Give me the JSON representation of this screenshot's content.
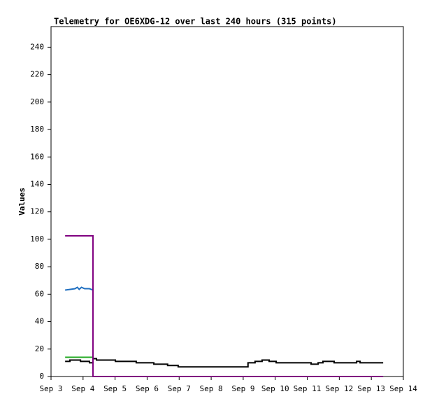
{
  "chart_data": {
    "type": "line",
    "title": "Telemetry for OE6XDG-12 over last 240 hours (315 points)",
    "y_label": "Values",
    "xlim": [
      3,
      14
    ],
    "xticks": [
      {
        "value": 3,
        "label": "Sep 3"
      },
      {
        "value": 4,
        "label": "Sep 4"
      },
      {
        "value": 5,
        "label": "Sep 5"
      },
      {
        "value": 6,
        "label": "Sep 6"
      },
      {
        "value": 7,
        "label": "Sep 7"
      },
      {
        "value": 8,
        "label": "Sep 8"
      },
      {
        "value": 9,
        "label": "Sep 9"
      },
      {
        "value": 10,
        "label": "Sep 10"
      },
      {
        "value": 11,
        "label": "Sep 11"
      },
      {
        "value": 12,
        "label": "Sep 12"
      },
      {
        "value": 13,
        "label": "Sep 13"
      },
      {
        "value": 14,
        "label": "Sep 14"
      }
    ],
    "ylim": [
      0,
      255
    ],
    "yticks": [
      0,
      20,
      40,
      60,
      80,
      100,
      120,
      140,
      160,
      180,
      200,
      220,
      240
    ],
    "grid": false,
    "series": [
      {
        "color": "#000000",
        "x": [
          3.44,
          3.59,
          3.59,
          3.92,
          3.92,
          4.2,
          4.2,
          4.31,
          4.31,
          4.42,
          4.42,
          5.01,
          5.01,
          5.66,
          5.66,
          6.21,
          6.21,
          6.64,
          6.64,
          6.97,
          6.97,
          9.15,
          9.15,
          9.37,
          9.37,
          9.59,
          9.59,
          9.81,
          9.81,
          10.03,
          10.03,
          11.12,
          11.12,
          11.34,
          11.34,
          11.49,
          11.49,
          11.84,
          11.84,
          12.54,
          12.54,
          12.65,
          12.65,
          13.37
        ],
        "values": [
          11,
          11,
          12,
          12,
          11,
          11,
          10,
          10,
          13,
          13,
          12,
          12,
          11,
          11,
          10,
          10,
          9,
          9,
          8,
          8,
          7,
          7,
          10,
          10,
          11,
          11,
          12,
          12,
          11,
          11,
          10,
          10,
          9,
          9,
          10,
          10,
          11,
          11,
          10,
          10,
          11,
          11,
          10,
          10
        ]
      },
      {
        "color": "#22aa22",
        "x": [
          3.44,
          4.31
        ],
        "values": [
          14,
          14
        ]
      },
      {
        "color": "#1f6fc0",
        "x": [
          3.44,
          3.6,
          3.75,
          3.82,
          3.88,
          3.95,
          4.05,
          4.2,
          4.31
        ],
        "values": [
          63,
          63.5,
          64,
          65,
          63.5,
          65,
          64,
          64,
          63
        ]
      },
      {
        "color": "#800080",
        "x": [
          3.44,
          4.31,
          4.31,
          13.37
        ],
        "values": [
          102.5,
          102.5,
          0,
          0
        ]
      }
    ]
  }
}
